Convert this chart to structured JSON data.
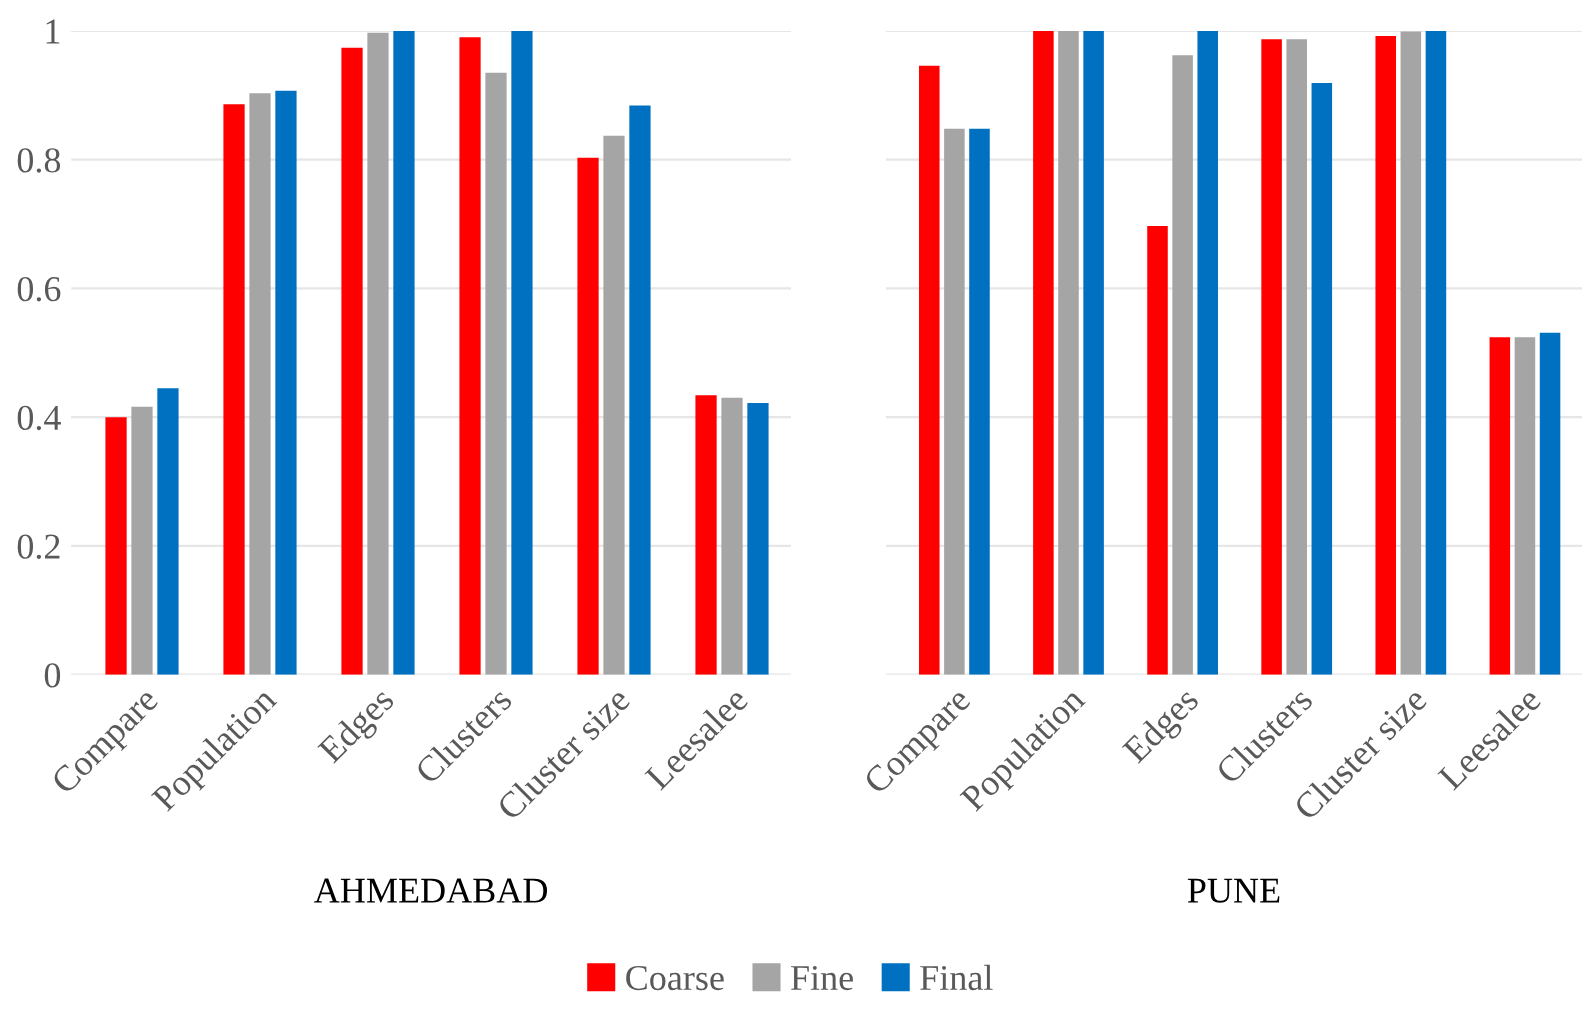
{
  "chart_data": [
    {
      "type": "bar",
      "xlabel": "AHMEDABAD",
      "categories": [
        "Compare",
        "Population",
        "Edges",
        "Clusters",
        "Cluster size",
        "Leesalee"
      ],
      "ylim": [
        0,
        1
      ],
      "yticks": [
        0,
        0.2,
        0.4,
        0.6,
        0.8,
        1
      ],
      "grid": "y",
      "legend": "bottom",
      "series": [
        {
          "name": "Coarse",
          "color": "#ff0000",
          "values": [
            0.4,
            0.886,
            0.974,
            0.99,
            0.803,
            0.434
          ]
        },
        {
          "name": "Fine",
          "color": "#a5a5a5",
          "values": [
            0.416,
            0.903,
            0.997,
            0.935,
            0.837,
            0.43
          ]
        },
        {
          "name": "Final",
          "color": "#0070c0",
          "values": [
            0.445,
            0.907,
            1.0,
            1.0,
            0.884,
            0.422
          ]
        }
      ]
    },
    {
      "type": "bar",
      "xlabel": "PUNE",
      "categories": [
        "Compare",
        "Population",
        "Edges",
        "Clusters",
        "Cluster size",
        "Leesalee"
      ],
      "ylim": [
        0,
        1
      ],
      "yticks": [
        0,
        0.2,
        0.4,
        0.6,
        0.8,
        1
      ],
      "grid": "y",
      "tick_labels": "x",
      "series": [
        {
          "color": "#ff0000",
          "values": [
            0.946,
            1.0,
            0.697,
            0.987,
            0.992,
            0.524
          ]
        },
        {
          "color": "#a5a5a5",
          "values": [
            0.848,
            1.0,
            0.962,
            0.987,
            0.999,
            0.524
          ]
        },
        {
          "color": "#0070c0",
          "values": [
            0.848,
            1.0,
            1.0,
            0.919,
            1.0,
            0.531
          ]
        }
      ]
    }
  ]
}
